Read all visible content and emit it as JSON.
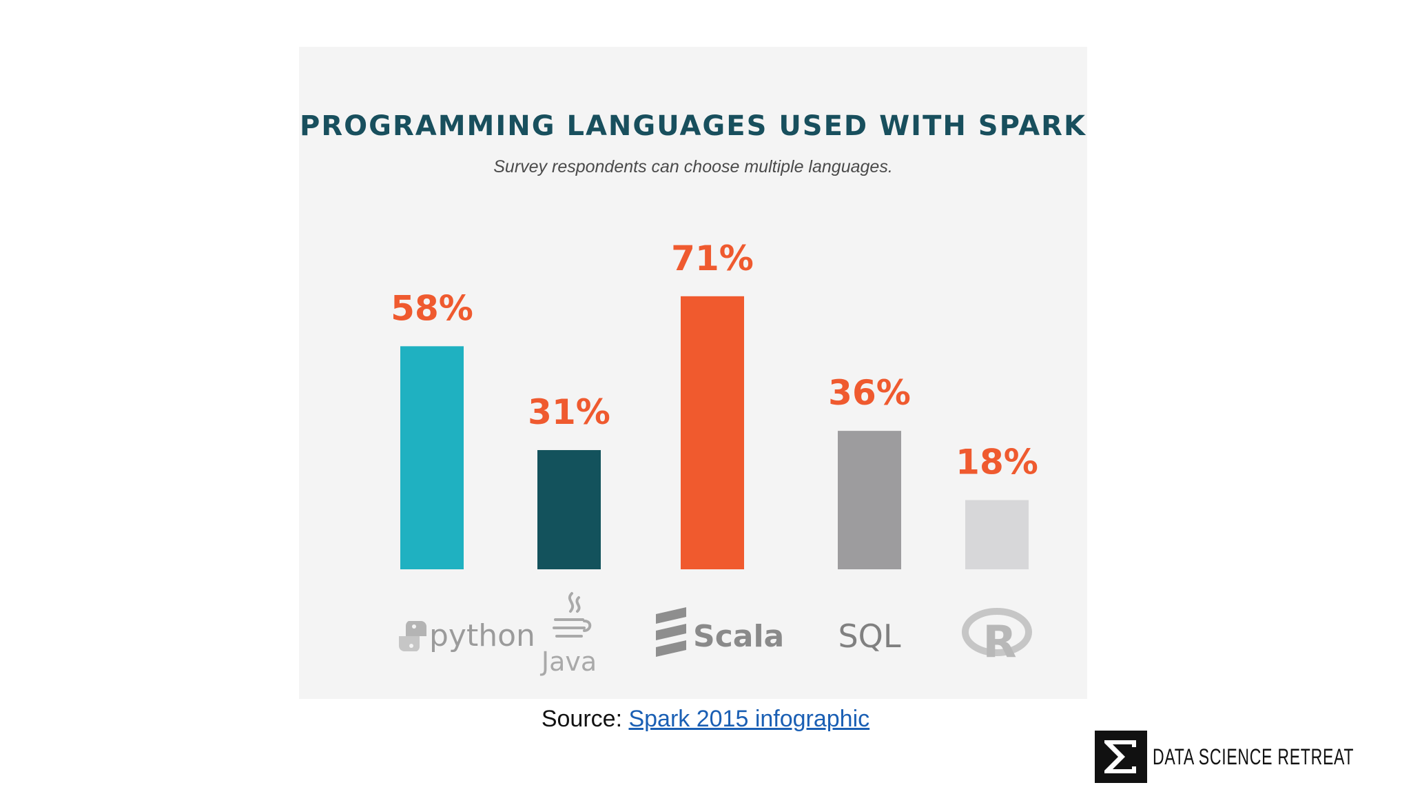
{
  "chart_data": {
    "type": "bar",
    "title": "PROGRAMMING LANGUAGES USED WITH SPARK",
    "subtitle": "Survey respondents can choose multiple languages.",
    "categories": [
      "python",
      "Java",
      "Scala",
      "SQL",
      "R"
    ],
    "values": [
      58,
      31,
      71,
      36,
      18
    ],
    "value_labels": [
      "58%",
      "31%",
      "71%",
      "36%",
      "18%"
    ],
    "bar_colors": [
      "#1fb1c1",
      "#13525c",
      "#f05a2e",
      "#9d9c9e",
      "#d7d7d9"
    ],
    "label_color": "#ef5a2f",
    "ylim": [
      0,
      100
    ],
    "grid": false,
    "legend": "none"
  },
  "category_icons": [
    "python-logo-icon",
    "java-cup-icon",
    "scala-logo-icon",
    "",
    "r-logo-icon"
  ],
  "source": {
    "prefix": "Source: ",
    "link_text": "Spark 2015 infographic"
  },
  "brand": {
    "text": "DATA SCIENCE RETREAT",
    "mark": "sigma-logo-icon"
  }
}
